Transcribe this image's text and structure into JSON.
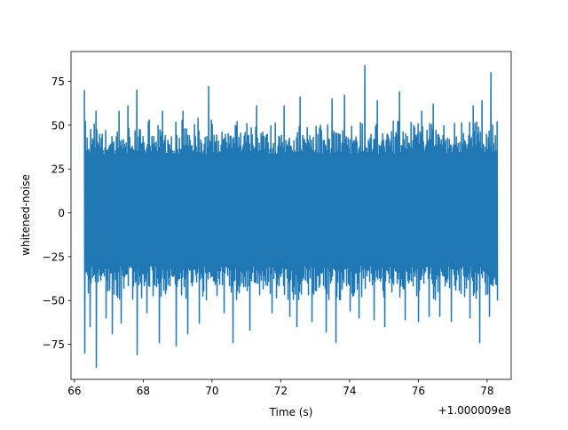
{
  "chart_data": {
    "type": "line",
    "title": "",
    "xlabel": "Time (s)",
    "ylabel": "whitened-noise",
    "x_offset_label": "+1.000009e8",
    "xlim": [
      65.9,
      78.7
    ],
    "ylim": [
      -95,
      92
    ],
    "x_ticks": [
      66,
      68,
      70,
      72,
      74,
      76,
      78
    ],
    "x_tick_labels": [
      "66",
      "68",
      "70",
      "72",
      "74",
      "76",
      "78"
    ],
    "y_ticks": [
      -75,
      -50,
      -25,
      0,
      25,
      50,
      75
    ],
    "y_tick_labels": [
      "−75",
      "−50",
      "−25",
      "0",
      "25",
      "50",
      "75"
    ],
    "grid": false,
    "legend": "none",
    "series": [
      {
        "color": "#1f77b4",
        "x_start": 66.28,
        "x_end": 78.3,
        "typical_range": [
          -42,
          45
        ],
        "peaks": [
          [
            66.3,
            70
          ],
          [
            66.62,
            58
          ],
          [
            67.3,
            58
          ],
          [
            67.55,
            61
          ],
          [
            67.82,
            70
          ],
          [
            68.55,
            58
          ],
          [
            69.15,
            58
          ],
          [
            69.58,
            54
          ],
          [
            69.9,
            72
          ],
          [
            71.3,
            61
          ],
          [
            72.1,
            61
          ],
          [
            72.55,
            66
          ],
          [
            73.5,
            65
          ],
          [
            73.85,
            67
          ],
          [
            74.45,
            84
          ],
          [
            74.8,
            64
          ],
          [
            75.45,
            69
          ],
          [
            76.1,
            58
          ],
          [
            76.42,
            62
          ],
          [
            77.6,
            61
          ],
          [
            77.85,
            64
          ],
          [
            78.1,
            80
          ]
        ],
        "troughs": [
          [
            66.28,
            -80
          ],
          [
            66.45,
            -65
          ],
          [
            66.62,
            -88
          ],
          [
            66.9,
            -60
          ],
          [
            67.1,
            -69
          ],
          [
            67.35,
            -63
          ],
          [
            67.82,
            -81
          ],
          [
            68.1,
            -57
          ],
          [
            68.45,
            -74
          ],
          [
            68.95,
            -76
          ],
          [
            69.28,
            -69
          ],
          [
            69.62,
            -63
          ],
          [
            70.35,
            -57
          ],
          [
            70.6,
            -74
          ],
          [
            71.1,
            -67
          ],
          [
            71.72,
            -57
          ],
          [
            72.25,
            -59
          ],
          [
            72.45,
            -65
          ],
          [
            72.9,
            -62
          ],
          [
            73.3,
            -68
          ],
          [
            73.6,
            -74
          ],
          [
            74.0,
            -56
          ],
          [
            74.25,
            -60
          ],
          [
            74.7,
            -61
          ],
          [
            75.0,
            -65
          ],
          [
            75.6,
            -61
          ],
          [
            76.0,
            -62
          ],
          [
            76.3,
            -59
          ],
          [
            76.6,
            -59
          ],
          [
            76.95,
            -62
          ],
          [
            77.5,
            -60
          ],
          [
            77.78,
            -74
          ],
          [
            78.05,
            -59
          ],
          [
            78.28,
            -50
          ]
        ]
      }
    ]
  }
}
